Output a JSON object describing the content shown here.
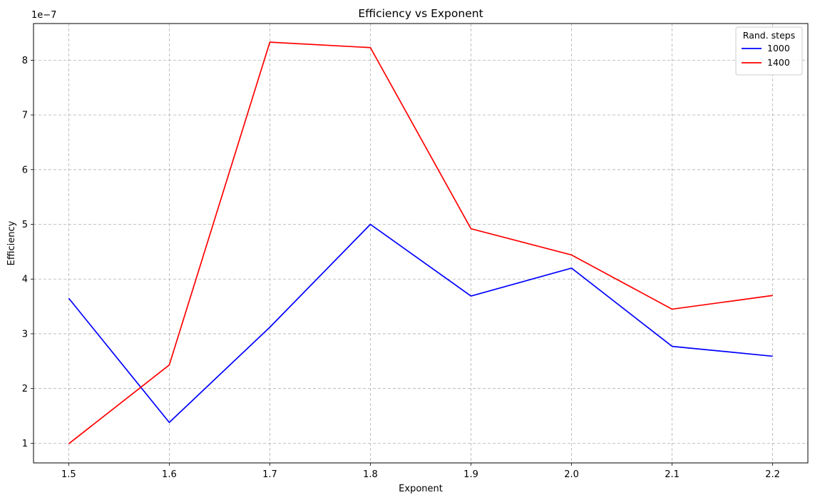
{
  "chart_data": {
    "type": "line",
    "title": "Efficiency vs Exponent",
    "xlabel": "Exponent",
    "ylabel": "Efficiency",
    "y_offset_label": "1e−7",
    "x": [
      1.5,
      1.6,
      1.7,
      1.8,
      1.9,
      2.0,
      2.1,
      2.2
    ],
    "x_ticks": [
      "1.5",
      "1.6",
      "1.7",
      "1.8",
      "1.9",
      "2.0",
      "2.1",
      "2.2"
    ],
    "y_ticks": [
      "1",
      "2",
      "3",
      "4",
      "5",
      "6",
      "7",
      "8"
    ],
    "y_tick_values": [
      1,
      2,
      3,
      4,
      5,
      6,
      7,
      8
    ],
    "y_scale_exponent": -7,
    "xlim": [
      1.465,
      2.235
    ],
    "ylim": [
      0.64,
      8.67
    ],
    "grid": true,
    "legend": {
      "title": "Rand. steps",
      "position": "top-right"
    },
    "series": [
      {
        "name": "1000",
        "color": "#0000ff",
        "values": [
          3.65,
          1.38,
          3.12,
          5.0,
          3.69,
          4.2,
          2.77,
          2.59
        ]
      },
      {
        "name": "1400",
        "color": "#ff0000",
        "values": [
          0.99,
          2.43,
          8.33,
          8.23,
          4.92,
          4.44,
          3.45,
          3.7
        ]
      }
    ]
  }
}
